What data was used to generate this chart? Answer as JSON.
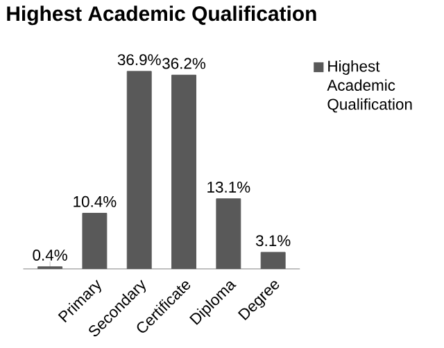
{
  "chart_data": {
    "type": "bar",
    "title": "Highest Academic Qualification",
    "categories": [
      null,
      "Primary",
      "Secondary",
      "Certificate",
      "Diploma",
      "Degree"
    ],
    "series": [
      {
        "name": "Highest Academic Qualification",
        "color": "#595959",
        "values": [
          0.4,
          10.4,
          36.9,
          36.2,
          13.1,
          3.1
        ],
        "value_labels": [
          "0.4%",
          "10.4%",
          "36.9%",
          "36.2%",
          "13.1%",
          "3.1%"
        ]
      }
    ],
    "legend": "right"
  }
}
